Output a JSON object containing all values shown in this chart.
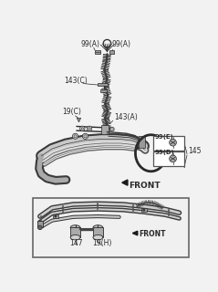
{
  "bg_color": "#f2f2f2",
  "labels": {
    "99A_left": "99(A)",
    "99A_right": "99(A)",
    "143C": "143(C)",
    "143A": "143(A)",
    "19C": "19(C)",
    "99E": "99(E)",
    "99D": "99(D)",
    "145": "145",
    "front_top": "FRONT",
    "147": "147",
    "19H": "19(H)",
    "front_bottom": "FRONT"
  },
  "lc": "#2a2a2a",
  "white": "#ffffff",
  "gray_light": "#cccccc",
  "gray_mid": "#888888",
  "gray_dark": "#444444"
}
